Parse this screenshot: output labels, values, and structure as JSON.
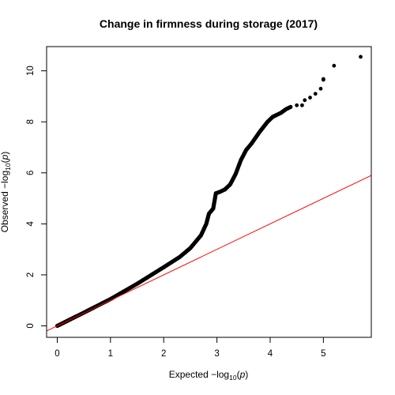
{
  "chart_data": {
    "type": "scatter",
    "title": "Change in firmness during storage (2017)",
    "xlabel_prefix": "Expected  −log",
    "xlabel_sub": "10",
    "xlabel_open": "(",
    "xlabel_var": "p",
    "xlabel_close": ")",
    "ylabel_prefix": "Observed  −log",
    "ylabel_sub": "10",
    "ylabel_open": "(",
    "ylabel_var": "p",
    "ylabel_close": ")",
    "xlim": [
      -0.2,
      5.9
    ],
    "ylim": [
      -0.45,
      10.95
    ],
    "x_ticks": [
      0,
      1,
      2,
      3,
      4,
      5
    ],
    "y_ticks": [
      0,
      2,
      4,
      6,
      8,
      10
    ],
    "point_color": "#000000",
    "reference_line": {
      "slope": 1,
      "intercept": 0,
      "color": "#ff0000"
    },
    "curve": [
      [
        0,
        0
      ],
      [
        0.5,
        0.52
      ],
      [
        1.0,
        1.05
      ],
      [
        1.5,
        1.65
      ],
      [
        2.0,
        2.3
      ],
      [
        2.3,
        2.7
      ],
      [
        2.5,
        3.05
      ],
      [
        2.7,
        3.55
      ],
      [
        2.8,
        4.0
      ],
      [
        2.85,
        4.4
      ],
      [
        2.93,
        4.6
      ],
      [
        2.98,
        5.2
      ],
      [
        3.05,
        5.25
      ],
      [
        3.15,
        5.35
      ],
      [
        3.25,
        5.55
      ],
      [
        3.35,
        5.95
      ],
      [
        3.45,
        6.5
      ],
      [
        3.55,
        6.9
      ],
      [
        3.65,
        7.15
      ],
      [
        3.8,
        7.6
      ],
      [
        3.95,
        8.0
      ],
      [
        4.05,
        8.2
      ],
      [
        4.2,
        8.35
      ],
      [
        4.3,
        8.5
      ],
      [
        4.4,
        8.6
      ]
    ],
    "tail_points": [
      {
        "x": 4.5,
        "y": 8.65
      },
      {
        "x": 4.6,
        "y": 8.65
      },
      {
        "x": 4.65,
        "y": 8.85
      },
      {
        "x": 4.75,
        "y": 8.95
      },
      {
        "x": 4.85,
        "y": 9.1
      },
      {
        "x": 4.95,
        "y": 9.3
      },
      {
        "x": 5.0,
        "y": 9.65
      },
      {
        "x": 5.0,
        "y": 9.68
      },
      {
        "x": 5.2,
        "y": 10.2
      },
      {
        "x": 5.7,
        "y": 10.55
      }
    ]
  }
}
